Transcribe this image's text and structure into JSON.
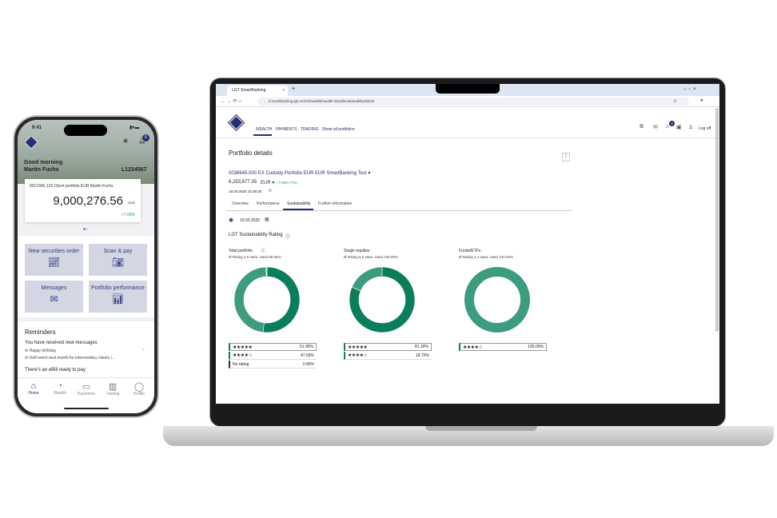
{
  "phone": {
    "time": "9:41",
    "greeting": "Good morning",
    "user": "Martin Fuchs",
    "client_id": "L1234567",
    "notification_count": "6",
    "portfolio_name": "0012345.123 Client portfolio EUR Martin Fuchs",
    "portfolio_value": "9,000,276.56",
    "currency": "EUR",
    "change": "+7.00%",
    "tiles": [
      {
        "label": "New securities order",
        "icon": "chart-trend-icon"
      },
      {
        "label": "Scan & pay",
        "icon": "camera-icon"
      },
      {
        "label": "Messages",
        "icon": "envelope-icon"
      },
      {
        "label": "Portfolio performance",
        "icon": "performance-icon"
      }
    ],
    "reminders": {
      "title": "Reminders",
      "group1": "You have received new messages",
      "msg1": "Happy birthday",
      "msg2": "Golf event next month for intermediary clients i...",
      "group2": "There's an eBill ready to pay"
    },
    "tabbar": [
      {
        "label": "Home",
        "icon": "home-icon"
      },
      {
        "label": "Wealth",
        "icon": "wealth-icon"
      },
      {
        "label": "Payments",
        "icon": "wallet-icon"
      },
      {
        "label": "Trading",
        "icon": "bar-chart-icon"
      },
      {
        "label": "Profile",
        "icon": "profile-icon"
      }
    ]
  },
  "browser": {
    "tab_title": "LGT SmartBanking",
    "url": "li.smartbanking.lgt.com/cb/wealth/wealth-detail/sustainability/detail"
  },
  "app": {
    "nav": [
      "WEALTH",
      "PAYMENTS",
      "TRADING",
      "Show all portfolios"
    ],
    "notification_count": "5",
    "logoff": "Log off",
    "page_title": "Portfolio details",
    "portfolio_name": "0038645.000 EX Custody Portfolio EUR EUR SmartBanking Test",
    "value": "6,253,677.35",
    "currency": "EUR",
    "ytd": "+7.00% YTD",
    "timestamp": "19.03.2025 15:38:30",
    "tabs": [
      "Overview",
      "Performance",
      "Sustainability",
      "Further information"
    ],
    "active_tab": "Sustainability",
    "date": "19.03.2025",
    "section_title": "LGT Sustainability Rating",
    "colors": {
      "dark": "#0a7d5a",
      "light": "#3d9c80",
      "none": "#9fcbbb",
      "accent": "#23306b"
    }
  },
  "chart_data": [
    {
      "type": "pie",
      "title": "Total portfolio",
      "subtitle": "Ø Rating 4.9 stars, rated 99.55%",
      "slices": [
        {
          "label": "★★★★★",
          "value": 51.96,
          "display": "51.96%",
          "color": "#0a7d5a"
        },
        {
          "label": "★★★★☆",
          "value": 47.59,
          "display": "47.59%",
          "color": "#3d9c80"
        },
        {
          "label": "No rating",
          "value": 0.45,
          "display": "0.45%",
          "color": "#9fcbbb"
        }
      ]
    },
    {
      "type": "pie",
      "title": "Single equities",
      "subtitle": "Ø Rating 5.0 stars, rated 100.00%",
      "slices": [
        {
          "label": "★★★★★",
          "value": 81.3,
          "display": "81.30%",
          "color": "#0a7d5a"
        },
        {
          "label": "★★★★☆",
          "value": 18.7,
          "display": "18.70%",
          "color": "#3d9c80"
        }
      ]
    },
    {
      "type": "pie",
      "title": "Funds/ETFs",
      "subtitle": "Ø Rating 4.4 stars, rated 100.00%",
      "slices": [
        {
          "label": "★★★★☆",
          "value": 100.0,
          "display": "100.00%",
          "color": "#3d9c80"
        }
      ]
    }
  ]
}
